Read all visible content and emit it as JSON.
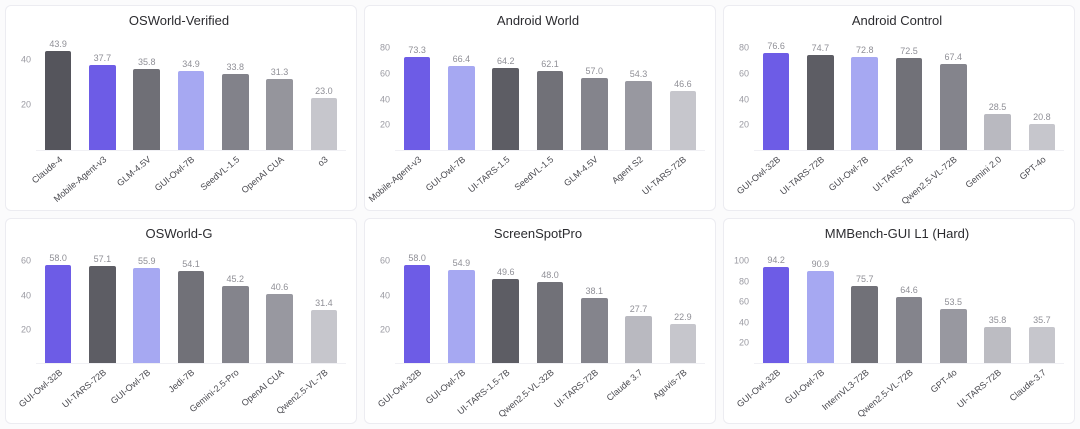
{
  "page": {
    "background": "#fbfbfc"
  },
  "colors": {
    "accent_purple": "#6d5ce6",
    "accent_light_purple": "#a6a8f2",
    "value_label": "#8f8f96",
    "tick_label": "#9a9aa2",
    "axis_label": "#4a4a50"
  },
  "chart_data": [
    {
      "type": "bar",
      "title": "OSWorld-Verified",
      "categories": [
        "Claude-4",
        "Mobile-Agent-v3",
        "GLM-4.5V",
        "GUI-Owl-7B",
        "SeedVL-1.5",
        "OpenAI CUA",
        "o3"
      ],
      "values": [
        43.9,
        37.7,
        35.8,
        34.9,
        33.8,
        31.3,
        23.0
      ],
      "bar_colors": [
        "#55555c",
        "#6d5ce6",
        "#6f6f76",
        "#a6a8f2",
        "#82828a",
        "#95959c",
        "#c6c6cc"
      ],
      "ylim": [
        0,
        45
      ],
      "yticks": [
        20,
        40
      ],
      "xlabel": "",
      "ylabel": "",
      "grid": false,
      "legend": "none"
    },
    {
      "type": "bar",
      "title": "Android World",
      "categories": [
        "Mobile-Agent-v3",
        "GUI-Owl-7B",
        "UI-TARS-1.5",
        "SeedVL-1.5",
        "GLM-4.5V",
        "Agent S2",
        "UI-TARS-72B"
      ],
      "values": [
        73.3,
        66.4,
        64.2,
        62.1,
        57.0,
        54.3,
        46.6
      ],
      "bar_colors": [
        "#6d5ce6",
        "#a6a8f2",
        "#5d5d64",
        "#717178",
        "#84848c",
        "#9898a0",
        "#c6c6cc"
      ],
      "ylim": [
        0,
        80
      ],
      "yticks": [
        20,
        40,
        60,
        80
      ],
      "xlabel": "",
      "ylabel": "",
      "grid": false,
      "legend": "none"
    },
    {
      "type": "bar",
      "title": "Android Control",
      "categories": [
        "GUI-Owl-32B",
        "UI-TARS-72B",
        "GUI-Owl-7B",
        "UI-TARS-7B",
        "Qwen2.5-VL-72B",
        "Gemini 2.0",
        "GPT-4o"
      ],
      "values": [
        76.6,
        74.7,
        72.8,
        72.5,
        67.4,
        28.5,
        20.8
      ],
      "bar_colors": [
        "#6d5ce6",
        "#5d5d64",
        "#a6a8f2",
        "#717178",
        "#84848c",
        "#b9b9c0",
        "#c6c6cc"
      ],
      "ylim": [
        0,
        80
      ],
      "yticks": [
        20,
        40,
        60,
        80
      ],
      "xlabel": "",
      "ylabel": "",
      "grid": false,
      "legend": "none"
    },
    {
      "type": "bar",
      "title": "OSWorld-G",
      "categories": [
        "GUI-Owl-32B",
        "UI-TARS-72B",
        "GUI-Owl-7B",
        "Jedi-7B",
        "Gemini-2.5-Pro",
        "OpenAI CUA",
        "Qwen2.5-VL-7B"
      ],
      "values": [
        58.0,
        57.1,
        55.9,
        54.1,
        45.2,
        40.6,
        31.4
      ],
      "bar_colors": [
        "#6d5ce6",
        "#5d5d64",
        "#a6a8f2",
        "#717178",
        "#84848c",
        "#9898a0",
        "#c6c6cc"
      ],
      "ylim": [
        0,
        60
      ],
      "yticks": [
        20,
        40,
        60
      ],
      "xlabel": "",
      "ylabel": "",
      "grid": false,
      "legend": "none"
    },
    {
      "type": "bar",
      "title": "ScreenSpotPro",
      "categories": [
        "GUI-Owl-32B",
        "GUI-Owl-7B",
        "UI-TARS-1.5-7B",
        "Qwen2.5-VL-32B",
        "UI-TARS-72B",
        "Claude 3.7",
        "Aguvis-7B"
      ],
      "values": [
        58.0,
        54.9,
        49.6,
        48.0,
        38.1,
        27.7,
        22.9
      ],
      "bar_colors": [
        "#6d5ce6",
        "#a6a8f2",
        "#5d5d64",
        "#717178",
        "#84848c",
        "#b9b9c0",
        "#c6c6cc"
      ],
      "ylim": [
        0,
        60
      ],
      "yticks": [
        20,
        40,
        60
      ],
      "xlabel": "",
      "ylabel": "",
      "grid": false,
      "legend": "none"
    },
    {
      "type": "bar",
      "title": "MMBench-GUI L1 (Hard)",
      "categories": [
        "GUI-Owl-32B",
        "GUI-Owl-7B",
        "InternVL3-72B",
        "Qwen2.5-VL-72B",
        "GPT-4o",
        "UI-TARS-72B",
        "Claude-3.7"
      ],
      "values": [
        94.2,
        90.9,
        75.7,
        64.6,
        53.5,
        35.8,
        35.7
      ],
      "bar_colors": [
        "#6d5ce6",
        "#a6a8f2",
        "#717178",
        "#84848c",
        "#9898a0",
        "#bcbcc2",
        "#c6c6cc"
      ],
      "ylim": [
        0,
        100
      ],
      "yticks": [
        20,
        40,
        60,
        80,
        100
      ],
      "xlabel": "",
      "ylabel": "",
      "grid": false,
      "legend": "none"
    }
  ]
}
